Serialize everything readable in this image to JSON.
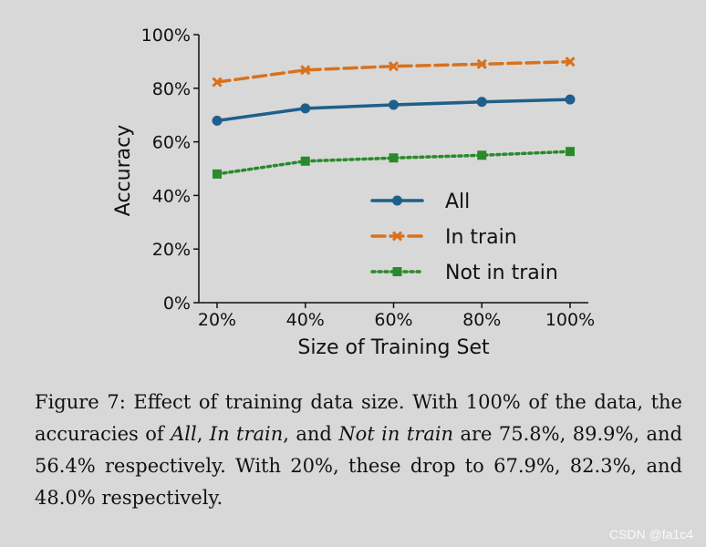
{
  "chart_data": {
    "type": "line",
    "title": "",
    "xlabel": "Size of Training Set",
    "ylabel": "Accuracy",
    "categories": [
      "20%",
      "40%",
      "60%",
      "80%",
      "100%"
    ],
    "yticks": [
      "0%",
      "20%",
      "40%",
      "60%",
      "80%",
      "100%"
    ],
    "ylim": [
      0,
      100
    ],
    "legend_position": "lower-right",
    "series": [
      {
        "name": "All",
        "values": [
          67.9,
          72.5,
          73.8,
          74.9,
          75.8
        ],
        "color": "#1f5f8b",
        "marker": "circle",
        "dash": "solid"
      },
      {
        "name": "In train",
        "values": [
          82.3,
          86.8,
          88.2,
          89.0,
          89.9
        ],
        "color": "#d9711c",
        "marker": "x",
        "dash": "dashed"
      },
      {
        "name": "Not in train",
        "values": [
          48.0,
          52.8,
          54.0,
          55.0,
          56.4
        ],
        "color": "#2a8a2a",
        "marker": "square",
        "dash": "dotted"
      }
    ]
  },
  "caption": {
    "p1": "Figure 7: Effect of training data size. With 100% of the data, the accuracies of ",
    "e1": "All",
    "p2": ", ",
    "e2": "In train",
    "p3": ", and ",
    "e3": "Not in train",
    "p4": " are 75.8%, 89.9%, and 56.4% respectively. With 20%, these drop to 67.9%, 82.3%, and 48.0% respectively."
  },
  "watermark": "CSDN @fa1c4"
}
